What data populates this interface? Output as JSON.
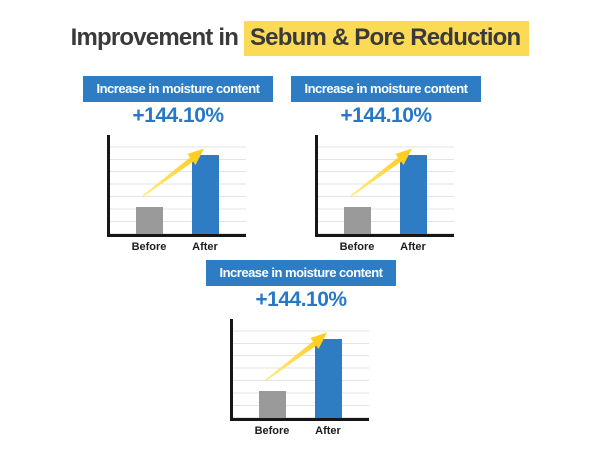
{
  "page": {
    "background": "#ffffff"
  },
  "title": {
    "prefix": "Improvement in",
    "highlight": "Sebum & Pore Reduction"
  },
  "colors": {
    "banner_blue": "#2e7dc4",
    "value_blue": "#2878c6",
    "bar_gray": "#9a9a9a",
    "bar_blue": "#2e7dc4",
    "title_text": "#3a3a3a",
    "highlight_yellow": "#fbdb56",
    "gridline": "#e3e3e3",
    "axis": "#161616",
    "arrow_yellow_light": "#ffec86",
    "arrow_yellow_dark": "#ffc918"
  },
  "panels": [
    {
      "header_label": "Increase in moisture content",
      "value_label": "+144.10%",
      "chart": {
        "categories": [
          "Before",
          "After"
        ],
        "bar_heights_pct": [
          27,
          80
        ]
      }
    },
    {
      "header_label": "Increase in moisture content",
      "value_label": "+144.10%",
      "chart": {
        "categories": [
          "Before",
          "After"
        ],
        "bar_heights_pct": [
          27,
          80
        ]
      }
    },
    {
      "header_label": "Increase in moisture content",
      "value_label": "+144.10%",
      "chart": {
        "categories": [
          "Before",
          "After"
        ],
        "bar_heights_pct": [
          27,
          80
        ]
      }
    }
  ],
  "chart_data": [
    {
      "type": "bar",
      "title": "Increase in moisture content",
      "annotation": "+144.10%",
      "increase_pct": 144.1,
      "categories": [
        "Before",
        "After"
      ],
      "values_relative_pct": [
        27,
        80
      ],
      "series_colors": {
        "Before": "#9a9a9a",
        "After": "#2e7dc4"
      },
      "xlabel": "",
      "ylabel": "",
      "grid": true,
      "legend": false,
      "trend_arrow": true
    },
    {
      "type": "bar",
      "title": "Increase in moisture content",
      "annotation": "+144.10%",
      "increase_pct": 144.1,
      "categories": [
        "Before",
        "After"
      ],
      "values_relative_pct": [
        27,
        80
      ],
      "series_colors": {
        "Before": "#9a9a9a",
        "After": "#2e7dc4"
      },
      "xlabel": "",
      "ylabel": "",
      "grid": true,
      "legend": false,
      "trend_arrow": true
    },
    {
      "type": "bar",
      "title": "Increase in moisture content",
      "annotation": "+144.10%",
      "increase_pct": 144.1,
      "categories": [
        "Before",
        "After"
      ],
      "values_relative_pct": [
        27,
        80
      ],
      "series_colors": {
        "Before": "#9a9a9a",
        "After": "#2e7dc4"
      },
      "xlabel": "",
      "ylabel": "",
      "grid": true,
      "legend": false,
      "trend_arrow": true
    }
  ]
}
